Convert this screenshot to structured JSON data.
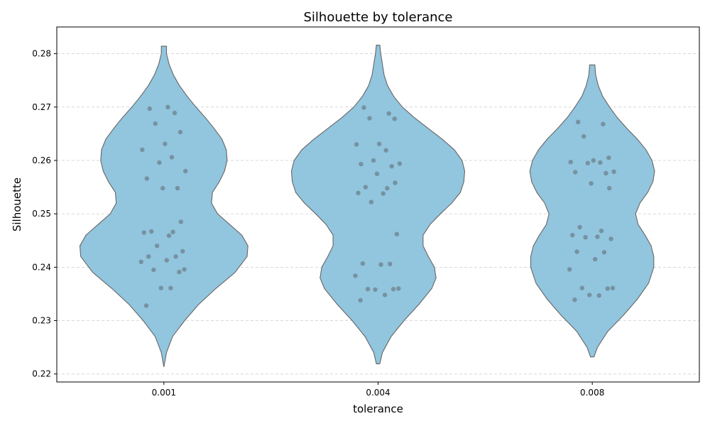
{
  "chart_data": {
    "type": "violin",
    "title": "Silhouette by tolerance",
    "xlabel": "tolerance",
    "ylabel": "Silhouette",
    "ylim": [
      0.2185,
      0.285
    ],
    "yticks": [
      0.22,
      0.23,
      0.24,
      0.25,
      0.26,
      0.27,
      0.28
    ],
    "grid": true,
    "colors": {
      "violin_fill": "#92c5de",
      "violin_edge": "#666666",
      "point": "#555555",
      "grid": "#cccccc"
    },
    "categories": [
      "0.001",
      "0.004",
      "0.008"
    ],
    "series": [
      {
        "category": "0.001",
        "extent": [
          0.2213,
          0.2814
        ],
        "density": [
          [
            0.2213,
            0.0
          ],
          [
            0.224,
            0.03
          ],
          [
            0.227,
            0.1
          ],
          [
            0.23,
            0.24
          ],
          [
            0.233,
            0.4
          ],
          [
            0.236,
            0.6
          ],
          [
            0.239,
            0.82
          ],
          [
            0.242,
            0.96
          ],
          [
            0.244,
            0.97
          ],
          [
            0.246,
            0.9
          ],
          [
            0.248,
            0.76
          ],
          [
            0.25,
            0.62
          ],
          [
            0.252,
            0.55
          ],
          [
            0.254,
            0.56
          ],
          [
            0.256,
            0.64
          ],
          [
            0.258,
            0.7
          ],
          [
            0.26,
            0.73
          ],
          [
            0.262,
            0.72
          ],
          [
            0.264,
            0.67
          ],
          [
            0.266,
            0.58
          ],
          [
            0.268,
            0.48
          ],
          [
            0.27,
            0.37
          ],
          [
            0.272,
            0.27
          ],
          [
            0.274,
            0.18
          ],
          [
            0.276,
            0.11
          ],
          [
            0.278,
            0.06
          ],
          [
            0.28,
            0.03
          ],
          [
            0.2814,
            0.03
          ]
        ],
        "points": [
          0.2328,
          0.2361,
          0.2361,
          0.2391,
          0.2395,
          0.2396,
          0.241,
          0.2413,
          0.242,
          0.242,
          0.243,
          0.244,
          0.2459,
          0.2465,
          0.2466,
          0.2467,
          0.2485,
          0.2548,
          0.2548,
          0.2566,
          0.258,
          0.2596,
          0.2606,
          0.262,
          0.2631,
          0.2653,
          0.2669,
          0.2689,
          0.2697,
          0.27
        ]
      },
      {
        "category": "0.004",
        "extent": [
          0.2219,
          0.2816
        ],
        "density": [
          [
            0.2219,
            0.02
          ],
          [
            0.224,
            0.05
          ],
          [
            0.227,
            0.15
          ],
          [
            0.23,
            0.3
          ],
          [
            0.233,
            0.47
          ],
          [
            0.236,
            0.62
          ],
          [
            0.238,
            0.67
          ],
          [
            0.24,
            0.65
          ],
          [
            0.242,
            0.58
          ],
          [
            0.244,
            0.52
          ],
          [
            0.246,
            0.52
          ],
          [
            0.248,
            0.6
          ],
          [
            0.25,
            0.72
          ],
          [
            0.252,
            0.85
          ],
          [
            0.254,
            0.95
          ],
          [
            0.256,
            0.99
          ],
          [
            0.258,
            1.0
          ],
          [
            0.26,
            0.97
          ],
          [
            0.262,
            0.88
          ],
          [
            0.264,
            0.74
          ],
          [
            0.266,
            0.58
          ],
          [
            0.268,
            0.42
          ],
          [
            0.27,
            0.28
          ],
          [
            0.272,
            0.18
          ],
          [
            0.274,
            0.11
          ],
          [
            0.276,
            0.07
          ],
          [
            0.278,
            0.05
          ],
          [
            0.28,
            0.03
          ],
          [
            0.2816,
            0.02
          ]
        ],
        "points": [
          0.2338,
          0.2348,
          0.2358,
          0.2359,
          0.2359,
          0.236,
          0.2384,
          0.2405,
          0.2406,
          0.2407,
          0.2462,
          0.2522,
          0.2538,
          0.2539,
          0.2548,
          0.255,
          0.2558,
          0.2575,
          0.2589,
          0.2593,
          0.2594,
          0.26,
          0.2619,
          0.263,
          0.2631,
          0.2678,
          0.2679,
          0.2688,
          0.2699
        ]
      },
      {
        "category": "0.008",
        "extent": [
          0.2232,
          0.2779
        ],
        "density": [
          [
            0.2232,
            0.02
          ],
          [
            0.225,
            0.06
          ],
          [
            0.228,
            0.18
          ],
          [
            0.231,
            0.36
          ],
          [
            0.234,
            0.52
          ],
          [
            0.237,
            0.65
          ],
          [
            0.24,
            0.71
          ],
          [
            0.242,
            0.71
          ],
          [
            0.244,
            0.68
          ],
          [
            0.246,
            0.61
          ],
          [
            0.248,
            0.53
          ],
          [
            0.25,
            0.5
          ],
          [
            0.252,
            0.55
          ],
          [
            0.254,
            0.64
          ],
          [
            0.256,
            0.7
          ],
          [
            0.258,
            0.72
          ],
          [
            0.26,
            0.69
          ],
          [
            0.262,
            0.62
          ],
          [
            0.264,
            0.52
          ],
          [
            0.266,
            0.4
          ],
          [
            0.268,
            0.29
          ],
          [
            0.27,
            0.2
          ],
          [
            0.272,
            0.12
          ],
          [
            0.274,
            0.07
          ],
          [
            0.276,
            0.04
          ],
          [
            0.2779,
            0.03
          ]
        ],
        "points": [
          0.2339,
          0.2347,
          0.2348,
          0.236,
          0.2361,
          0.2361,
          0.2396,
          0.2415,
          0.2428,
          0.2429,
          0.2453,
          0.2456,
          0.2457,
          0.246,
          0.2468,
          0.2475,
          0.2548,
          0.2557,
          0.2576,
          0.2578,
          0.2579,
          0.2595,
          0.2596,
          0.2597,
          0.26,
          0.2605,
          0.2645,
          0.2668,
          0.2672
        ]
      }
    ]
  }
}
